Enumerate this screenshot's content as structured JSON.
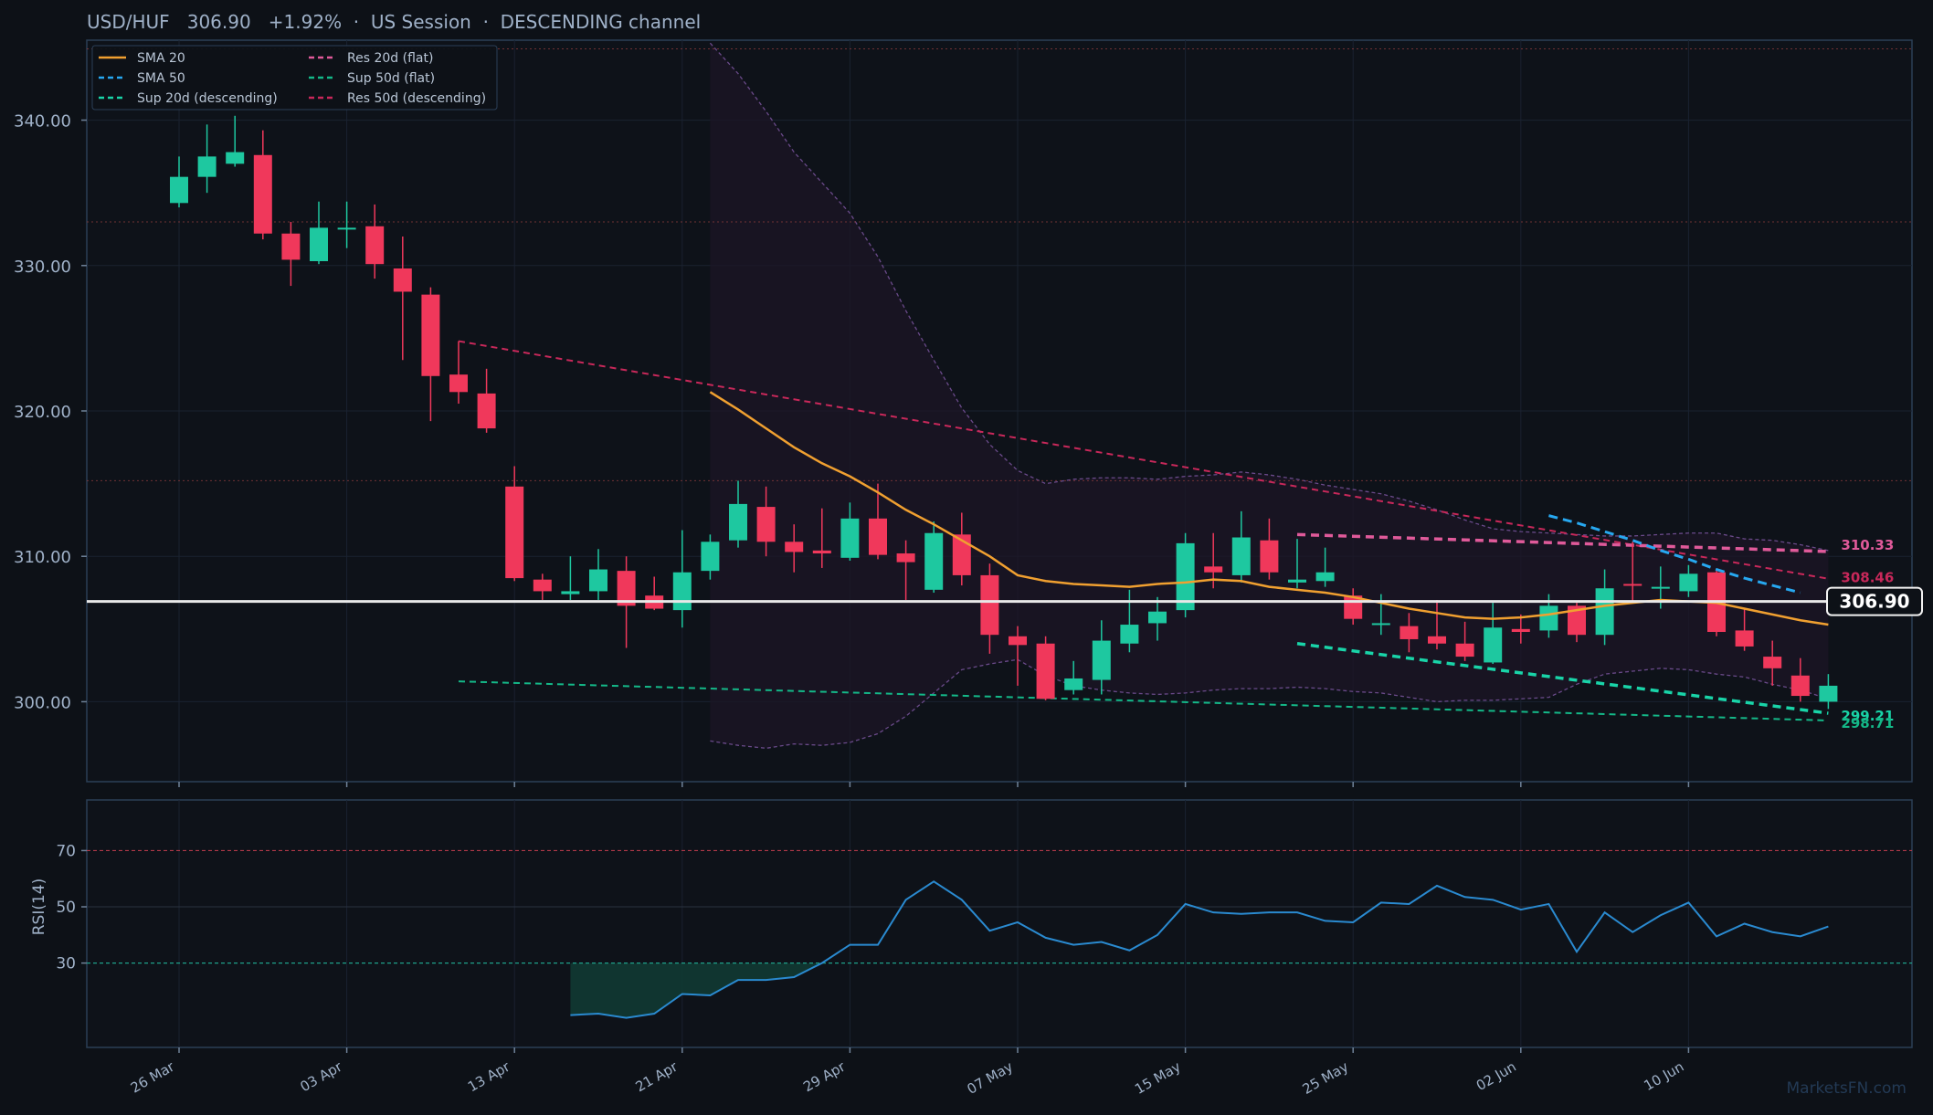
{
  "header": {
    "title": "USD/HUF   306.90   +1.92%  ·  US Session  ·  DESCENDING channel"
  },
  "watermark": "MarketsFN.com",
  "colors": {
    "background": "#0d1117",
    "panel_border": "#2b3f57",
    "grid": "#1a2230",
    "up": "#1ec8a0",
    "down": "#f0385b",
    "sma20": "#f0a030",
    "sma50": "#27a8f0",
    "res20": "#e05a9a",
    "sup20": "#19d4a8",
    "sup50": "#14b888",
    "res50": "#c8285a",
    "bollinger": "#6a4a8a",
    "price_line": "#e8e8e8",
    "rsi_line": "#2a8ad0",
    "rsi_fill": "#113a33",
    "text": "#9fb1c8"
  },
  "chart_data": [
    {
      "type": "candlestick",
      "title": "USD/HUF   306.90   +1.92%  ·  US Session  ·  DESCENDING channel",
      "ylim": [
        294.5,
        345.5
      ],
      "y_ticks": [
        "300.00",
        "310.00",
        "320.00",
        "330.00",
        "340.00"
      ],
      "y_tick_values": [
        300,
        310,
        320,
        330,
        340
      ],
      "x_tick_labels": [
        "26 Mar",
        "03 Apr",
        "13 Apr",
        "21 Apr",
        "29 Apr",
        "07 May",
        "15 May",
        "25 May",
        "02 Jun",
        "10 Jun"
      ],
      "x_tick_index": [
        0,
        6,
        12,
        18,
        24,
        30,
        36,
        42,
        48,
        54
      ],
      "legend": {
        "placement": "top-left",
        "entries": [
          {
            "label": "SMA 20",
            "key": "sma20",
            "style": "solid"
          },
          {
            "label": "Res 20d (flat)",
            "key": "res20",
            "style": "dash"
          },
          {
            "label": "SMA 50",
            "key": "sma50",
            "style": "dash"
          },
          {
            "label": "Sup 50d (flat)",
            "key": "sup50",
            "style": "dash"
          },
          {
            "label": "Sup 20d (descending)",
            "key": "sup20",
            "style": "dash"
          },
          {
            "label": "Res 50d (descending)",
            "key": "res50",
            "style": "dash"
          }
        ]
      },
      "candles": [
        {
          "o": 334.3,
          "h": 337.5,
          "l": 334.0,
          "c": 336.1
        },
        {
          "o": 336.1,
          "h": 339.7,
          "l": 335.0,
          "c": 337.5
        },
        {
          "o": 337.0,
          "h": 340.3,
          "l": 336.8,
          "c": 337.8
        },
        {
          "o": 337.6,
          "h": 339.3,
          "l": 331.8,
          "c": 332.2
        },
        {
          "o": 332.2,
          "h": 333.0,
          "l": 328.6,
          "c": 330.4
        },
        {
          "o": 330.3,
          "h": 334.4,
          "l": 330.1,
          "c": 332.6
        },
        {
          "o": 332.6,
          "h": 334.4,
          "l": 331.2,
          "c": 332.6
        },
        {
          "o": 332.7,
          "h": 334.2,
          "l": 329.1,
          "c": 330.1
        },
        {
          "o": 329.8,
          "h": 332.0,
          "l": 323.5,
          "c": 328.2
        },
        {
          "o": 328.0,
          "h": 328.5,
          "l": 319.3,
          "c": 322.4
        },
        {
          "o": 322.5,
          "h": 324.8,
          "l": 320.5,
          "c": 321.3
        },
        {
          "o": 321.2,
          "h": 322.9,
          "l": 318.5,
          "c": 318.8
        },
        {
          "o": 314.8,
          "h": 316.2,
          "l": 308.3,
          "c": 308.5
        },
        {
          "o": 308.4,
          "h": 308.8,
          "l": 307.0,
          "c": 307.6
        },
        {
          "o": 307.4,
          "h": 310.0,
          "l": 307.0,
          "c": 307.6
        },
        {
          "o": 307.6,
          "h": 310.5,
          "l": 307.0,
          "c": 309.1
        },
        {
          "o": 309.0,
          "h": 310.0,
          "l": 303.7,
          "c": 306.6
        },
        {
          "o": 307.3,
          "h": 308.6,
          "l": 306.3,
          "c": 306.4
        },
        {
          "o": 306.3,
          "h": 311.8,
          "l": 305.1,
          "c": 308.9
        },
        {
          "o": 309.0,
          "h": 311.5,
          "l": 308.4,
          "c": 311.0
        },
        {
          "o": 311.1,
          "h": 315.2,
          "l": 310.6,
          "c": 313.6
        },
        {
          "o": 313.4,
          "h": 314.8,
          "l": 310.0,
          "c": 311.0
        },
        {
          "o": 311.0,
          "h": 312.2,
          "l": 308.9,
          "c": 310.3
        },
        {
          "o": 310.4,
          "h": 313.3,
          "l": 309.2,
          "c": 310.2
        },
        {
          "o": 309.9,
          "h": 313.7,
          "l": 309.7,
          "c": 312.6
        },
        {
          "o": 312.6,
          "h": 315.0,
          "l": 309.8,
          "c": 310.1
        },
        {
          "o": 310.2,
          "h": 311.1,
          "l": 307.0,
          "c": 309.6
        },
        {
          "o": 307.7,
          "h": 312.4,
          "l": 307.5,
          "c": 311.6
        },
        {
          "o": 311.5,
          "h": 313.0,
          "l": 308.0,
          "c": 308.7
        },
        {
          "o": 308.7,
          "h": 309.5,
          "l": 303.3,
          "c": 304.6
        },
        {
          "o": 304.5,
          "h": 305.2,
          "l": 301.1,
          "c": 303.9
        },
        {
          "o": 304.0,
          "h": 304.5,
          "l": 300.1,
          "c": 300.2
        },
        {
          "o": 300.8,
          "h": 302.8,
          "l": 300.5,
          "c": 301.6
        },
        {
          "o": 301.5,
          "h": 305.6,
          "l": 300.5,
          "c": 304.2
        },
        {
          "o": 304.0,
          "h": 307.7,
          "l": 303.4,
          "c": 305.3
        },
        {
          "o": 305.4,
          "h": 307.2,
          "l": 304.2,
          "c": 306.2
        },
        {
          "o": 306.3,
          "h": 311.6,
          "l": 305.8,
          "c": 310.9
        },
        {
          "o": 309.3,
          "h": 311.6,
          "l": 307.8,
          "c": 308.9
        },
        {
          "o": 308.7,
          "h": 313.1,
          "l": 308.2,
          "c": 311.3
        },
        {
          "o": 311.1,
          "h": 312.6,
          "l": 308.4,
          "c": 308.9
        },
        {
          "o": 308.2,
          "h": 311.2,
          "l": 307.8,
          "c": 308.4
        },
        {
          "o": 308.3,
          "h": 310.6,
          "l": 307.9,
          "c": 308.9
        },
        {
          "o": 307.3,
          "h": 307.8,
          "l": 305.3,
          "c": 305.7
        },
        {
          "o": 305.4,
          "h": 307.4,
          "l": 304.6,
          "c": 305.4
        },
        {
          "o": 305.2,
          "h": 306.1,
          "l": 303.4,
          "c": 304.3
        },
        {
          "o": 304.5,
          "h": 307.0,
          "l": 303.6,
          "c": 304.0
        },
        {
          "o": 304.0,
          "h": 305.5,
          "l": 302.8,
          "c": 303.1
        },
        {
          "o": 302.7,
          "h": 306.8,
          "l": 302.6,
          "c": 305.1
        },
        {
          "o": 305.0,
          "h": 306.0,
          "l": 304.0,
          "c": 304.8
        },
        {
          "o": 304.9,
          "h": 307.4,
          "l": 304.4,
          "c": 306.6
        },
        {
          "o": 306.6,
          "h": 306.8,
          "l": 304.1,
          "c": 304.6
        },
        {
          "o": 304.6,
          "h": 309.1,
          "l": 303.9,
          "c": 307.8
        },
        {
          "o": 308.1,
          "h": 311.0,
          "l": 306.9,
          "c": 308.0
        },
        {
          "o": 307.9,
          "h": 309.3,
          "l": 306.4,
          "c": 307.9
        },
        {
          "o": 307.6,
          "h": 309.4,
          "l": 307.2,
          "c": 308.8
        },
        {
          "o": 308.9,
          "h": 309.0,
          "l": 304.5,
          "c": 304.8
        },
        {
          "o": 304.9,
          "h": 306.4,
          "l": 303.5,
          "c": 303.8
        },
        {
          "o": 303.1,
          "h": 304.2,
          "l": 301.1,
          "c": 302.3
        },
        {
          "o": 301.8,
          "h": 303.0,
          "l": 300.0,
          "c": 300.4
        },
        {
          "o": 300.0,
          "h": 301.9,
          "l": 299.5,
          "c": 301.1
        }
      ],
      "sma20": {
        "start_index": 19,
        "values": [
          321.3,
          320.1,
          318.8,
          317.5,
          316.4,
          315.5,
          314.4,
          313.2,
          312.2,
          311.1,
          310.0,
          308.7,
          308.3,
          308.1,
          308.0,
          307.9,
          308.1,
          308.2,
          308.4,
          308.3,
          307.9,
          307.7,
          307.5,
          307.2,
          306.8,
          306.4,
          306.1,
          305.8,
          305.7,
          305.8,
          306.0,
          306.3,
          306.6,
          306.8,
          307.0,
          306.9,
          306.8,
          306.4,
          306.0,
          305.6,
          305.3
        ]
      },
      "sma50": {
        "start_index": 49,
        "values": [
          312.8,
          312.3,
          311.7,
          311.1,
          310.4,
          309.8,
          309.1,
          308.5,
          308.0,
          307.5
        ]
      },
      "bollinger_upper": {
        "start_index": 19,
        "values": [
          345.3,
          343.2,
          340.6,
          337.8,
          335.7,
          333.6,
          330.6,
          326.9,
          323.5,
          320.2,
          317.7,
          315.9,
          315.0,
          315.3,
          315.4,
          315.4,
          315.3,
          315.5,
          315.6,
          315.8,
          315.6,
          315.3,
          314.9,
          314.6,
          314.3,
          313.8,
          313.2,
          312.5,
          311.9,
          311.7,
          311.6,
          311.5,
          311.4,
          311.4,
          311.5,
          311.6,
          311.6,
          311.2,
          311.1,
          310.8,
          310.4
        ]
      },
      "bollinger_lower": {
        "start_index": 19,
        "values": [
          297.3,
          297.0,
          296.8,
          297.1,
          297.0,
          297.2,
          297.8,
          299.0,
          300.6,
          302.2,
          302.6,
          302.9,
          301.8,
          301.1,
          300.8,
          300.6,
          300.5,
          300.6,
          300.8,
          300.9,
          300.9,
          301.0,
          300.9,
          300.7,
          300.6,
          300.3,
          300.0,
          300.1,
          300.1,
          300.2,
          300.3,
          301.2,
          301.9,
          302.1,
          302.3,
          302.2,
          301.9,
          301.7,
          301.2,
          300.8,
          300.2
        ]
      },
      "levels": {
        "res50_descending": {
          "i0": 10,
          "v0": 324.8,
          "i1": 59,
          "v1": 308.46,
          "label": "308.46"
        },
        "res20_flat": {
          "i0": 40,
          "v0": 311.5,
          "i1": 59,
          "v1": 310.33,
          "label": "310.33"
        },
        "sup20_descending": {
          "i0": 40,
          "v0": 304.0,
          "i1": 59,
          "v1": 299.21,
          "label": "299.21"
        },
        "sup50_flat": {
          "i0": 10,
          "v0": 301.4,
          "i1": 59,
          "v1": 298.71,
          "label": "298.71"
        }
      },
      "horizontal_levels": [
        344.9,
        333.0,
        315.2
      ],
      "last_price": {
        "value": 306.9,
        "label": "306.90"
      }
    },
    {
      "type": "line",
      "ylabel": "RSI(14)",
      "ylim": [
        0,
        88
      ],
      "y_ticks": [
        "30",
        "50",
        "70"
      ],
      "y_tick_values": [
        30,
        50,
        70
      ],
      "overbought": 70,
      "oversold": 30,
      "series": [
        {
          "start_index": 14,
          "values": [
            11.5,
            12.0,
            10.5,
            12.0,
            19.0,
            18.5,
            24.0,
            24.0,
            25.0,
            30.0,
            36.5,
            36.5,
            52.5,
            59.0,
            52.5,
            41.5,
            44.5,
            39.0,
            36.5,
            37.5,
            34.5,
            40.0,
            51.0,
            48.0,
            47.5,
            48.0,
            48.0,
            45.0,
            44.5,
            51.5,
            51.0,
            57.5,
            53.5,
            52.5,
            49.0,
            51.0,
            34.0,
            48.0,
            41.0,
            47.0,
            51.5,
            39.5,
            44.0,
            41.0,
            39.5,
            43.0
          ]
        }
      ]
    }
  ]
}
